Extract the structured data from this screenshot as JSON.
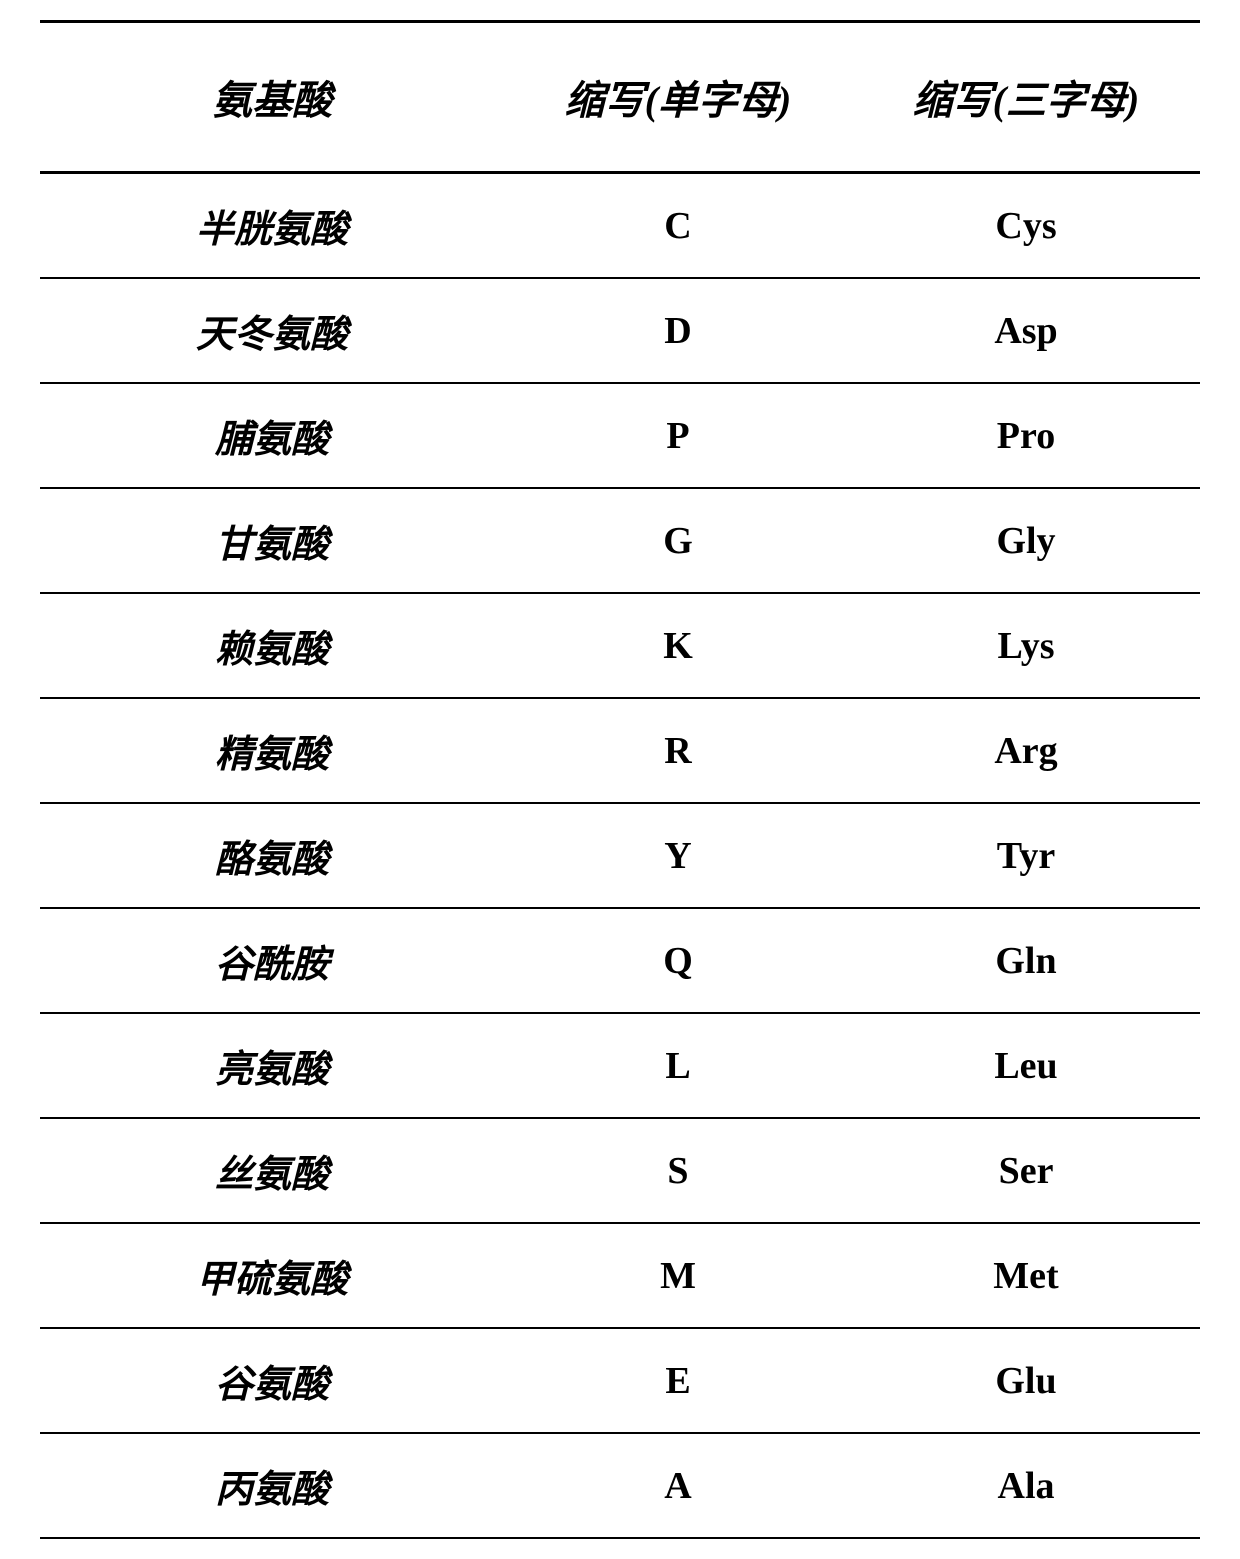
{
  "table": {
    "type": "table",
    "columns": [
      {
        "header": "氨基酸",
        "key": "name",
        "align": "center"
      },
      {
        "header": "缩写(单字母)",
        "key": "single",
        "align": "center"
      },
      {
        "header": "缩写(三字母)",
        "key": "three",
        "align": "center"
      }
    ],
    "rows": [
      {
        "name": "半胱氨酸",
        "single": "C",
        "three": "Cys"
      },
      {
        "name": "天冬氨酸",
        "single": "D",
        "three": "Asp"
      },
      {
        "name": "脯氨酸",
        "single": "P",
        "three": "Pro"
      },
      {
        "name": "甘氨酸",
        "single": "G",
        "three": "Gly"
      },
      {
        "name": "赖氨酸",
        "single": "K",
        "three": "Lys"
      },
      {
        "name": "精氨酸",
        "single": "R",
        "three": "Arg"
      },
      {
        "name": "酪氨酸",
        "single": "Y",
        "three": "Tyr"
      },
      {
        "name": "谷酰胺",
        "single": "Q",
        "three": "Gln"
      },
      {
        "name": "亮氨酸",
        "single": "L",
        "three": "Leu"
      },
      {
        "name": "丝氨酸",
        "single": "S",
        "three": "Ser"
      },
      {
        "name": "甲硫氨酸",
        "single": "M",
        "three": "Met"
      },
      {
        "name": "谷氨酸",
        "single": "E",
        "three": "Glu"
      },
      {
        "name": "丙氨酸",
        "single": "A",
        "three": "Ala"
      }
    ],
    "styling": {
      "background_color": "#ffffff",
      "text_color": "#000000",
      "border_color": "#000000",
      "header_border_width": 3,
      "row_border_width": 2,
      "header_fontsize": 40,
      "body_fontsize": 38,
      "header_font_family": "KaiTi",
      "name_col_font_family": "KaiTi",
      "code_col_font_family": "Times New Roman",
      "font_weight": "bold",
      "header_padding_v": 45,
      "row_padding_v": 24,
      "col_widths_pct": [
        40,
        30,
        30
      ]
    }
  }
}
